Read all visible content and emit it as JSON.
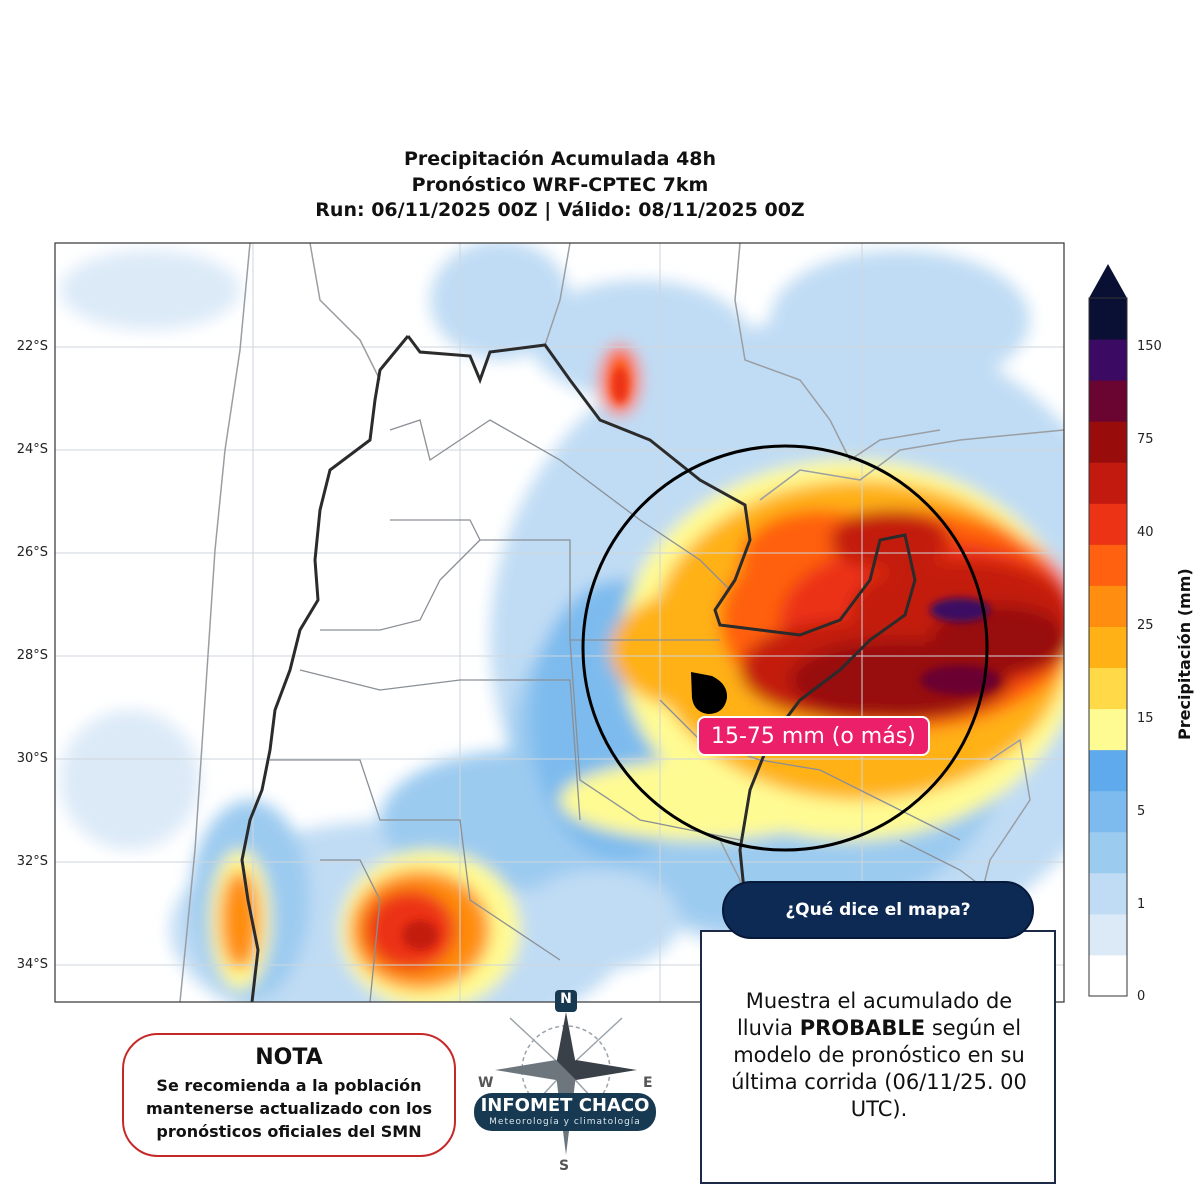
{
  "title": {
    "line1": "Precipitación Acumulada 48h",
    "line2": "Pronóstico WRF-CPTEC 7km",
    "line3": "Run: 06/11/2025 00Z | Válido: 08/11/2025 00Z"
  },
  "map": {
    "lat_labels": [
      "22°S",
      "24°S",
      "26°S",
      "28°S",
      "30°S",
      "32°S",
      "34°S"
    ],
    "callout": "15-75 mm (o más)",
    "marker": "rain-drop-icon"
  },
  "colorbar": {
    "title": "Precipitación (mm)",
    "ticks": [
      "150",
      "75",
      "40",
      "25",
      "15",
      "5",
      "1",
      "0"
    ],
    "colors": [
      "#ffffff",
      "#dceaf8",
      "#c0dcf4",
      "#9ccbf0",
      "#7dbbee",
      "#5eaaec",
      "#fffb93",
      "#ffd948",
      "#ffb115",
      "#ff8d0f",
      "#ff6111",
      "#ec3316",
      "#c31a10",
      "#980c0c",
      "#6a0531",
      "#3b0a63",
      "#0a1033"
    ]
  },
  "nota": {
    "title": "NOTA",
    "text": "Se recomienda a la población mantenerse actualizado con los pronósticos oficiales del SMN"
  },
  "logo": {
    "name": "INFOMET CHACO",
    "tagline": "Meteorología y climatología",
    "n": "N",
    "s": "S",
    "e": "E",
    "w": "W"
  },
  "info": {
    "question": "¿Qué dice el mapa?",
    "text_pre": "Muestra el acumulado de lluvia ",
    "text_bold": "PROBABLE",
    "text_post": " según el modelo de pronóstico en su última corrida (06/11/25. 00 UTC)."
  }
}
